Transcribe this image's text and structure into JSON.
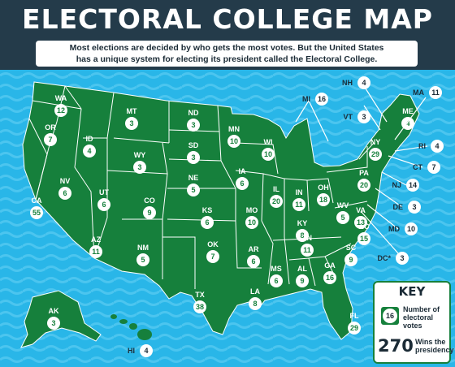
{
  "header": {
    "title": "ELECTORAL COLLEGE MAP",
    "subtitle_line1": "Most elections are decided by who gets the most votes. But the United States",
    "subtitle_line2": "has a unique system for electing its president called the Electoral College."
  },
  "colors": {
    "land": "#16803c",
    "water": "#29b6e8",
    "header": "#243b4a",
    "badge": "#ffffff"
  },
  "states": [
    {
      "abbr": "WA",
      "votes": "12"
    },
    {
      "abbr": "OR",
      "votes": "7"
    },
    {
      "abbr": "CA",
      "votes": "55"
    },
    {
      "abbr": "ID",
      "votes": "4"
    },
    {
      "abbr": "NV",
      "votes": "6"
    },
    {
      "abbr": "MT",
      "votes": "3"
    },
    {
      "abbr": "WY",
      "votes": "3"
    },
    {
      "abbr": "UT",
      "votes": "6"
    },
    {
      "abbr": "CO",
      "votes": "9"
    },
    {
      "abbr": "AZ",
      "votes": "11"
    },
    {
      "abbr": "NM",
      "votes": "5"
    },
    {
      "abbr": "ND",
      "votes": "3"
    },
    {
      "abbr": "SD",
      "votes": "3"
    },
    {
      "abbr": "NE",
      "votes": "5"
    },
    {
      "abbr": "KS",
      "votes": "6"
    },
    {
      "abbr": "OK",
      "votes": "7"
    },
    {
      "abbr": "TX",
      "votes": "38"
    },
    {
      "abbr": "MN",
      "votes": "10"
    },
    {
      "abbr": "IA",
      "votes": "6"
    },
    {
      "abbr": "MO",
      "votes": "10"
    },
    {
      "abbr": "AR",
      "votes": "6"
    },
    {
      "abbr": "LA",
      "votes": "8"
    },
    {
      "abbr": "WI",
      "votes": "10"
    },
    {
      "abbr": "IL",
      "votes": "20"
    },
    {
      "abbr": "MS",
      "votes": "6"
    },
    {
      "abbr": "IN",
      "votes": "11"
    },
    {
      "abbr": "KY",
      "votes": "8"
    },
    {
      "abbr": "TN",
      "votes": "11"
    },
    {
      "abbr": "AL",
      "votes": "9"
    },
    {
      "abbr": "OH",
      "votes": "18"
    },
    {
      "abbr": "WV",
      "votes": "5"
    },
    {
      "abbr": "GA",
      "votes": "16"
    },
    {
      "abbr": "FL",
      "votes": "29"
    },
    {
      "abbr": "SC",
      "votes": "9"
    },
    {
      "abbr": "NC",
      "votes": "15"
    },
    {
      "abbr": "VA",
      "votes": "13"
    },
    {
      "abbr": "PA",
      "votes": "20"
    },
    {
      "abbr": "NY",
      "votes": "29"
    },
    {
      "abbr": "ME",
      "votes": "4"
    },
    {
      "abbr": "AK",
      "votes": "3"
    }
  ],
  "callouts": [
    {
      "abbr": "MI",
      "votes": "16"
    },
    {
      "abbr": "NH",
      "votes": "4"
    },
    {
      "abbr": "VT",
      "votes": "3"
    },
    {
      "abbr": "MA",
      "votes": "11"
    },
    {
      "abbr": "RI",
      "votes": "4"
    },
    {
      "abbr": "CT",
      "votes": "7"
    },
    {
      "abbr": "NJ",
      "votes": "14"
    },
    {
      "abbr": "DE",
      "votes": "3"
    },
    {
      "abbr": "MD",
      "votes": "10"
    },
    {
      "abbr": "DC*",
      "votes": "3"
    },
    {
      "abbr": "HI",
      "votes": "4"
    }
  ],
  "key": {
    "title": "KEY",
    "badge_sample": "16",
    "badge_label": "Number of electoral votes",
    "win_number": "270",
    "win_label": "Wins the presidency"
  }
}
